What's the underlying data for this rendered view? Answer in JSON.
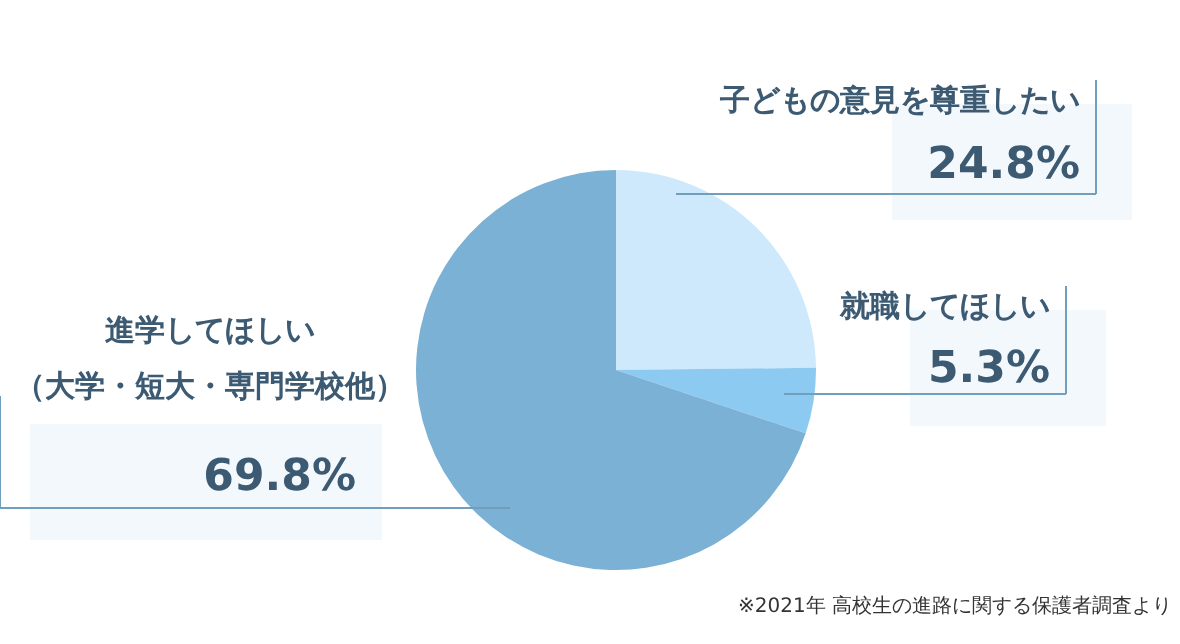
{
  "chart_data": {
    "type": "pie",
    "categories": [
      "子どもの意見を尊重したい",
      "就職してほしい",
      "進学してほしい（大学・短大・専門学校他）"
    ],
    "values": [
      24.8,
      5.3,
      69.8
    ],
    "colors": [
      "#cde9fb",
      "#8dcaf1",
      "#7bb1d5"
    ],
    "value_labels": [
      "24.8%",
      "5.3%",
      "69.8%"
    ],
    "annotations": [
      "※2021年 高校生の進路に関する保護者調査より"
    ]
  }
}
